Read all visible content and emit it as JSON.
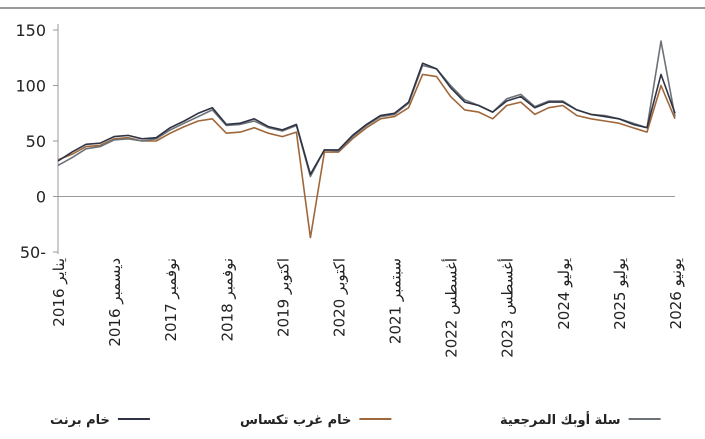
{
  "chart_data": {
    "type": "line",
    "categories": [
      "يناير 2016",
      null,
      null,
      null,
      "ديسمبر 2016",
      null,
      null,
      null,
      "نوفمبر 2017",
      null,
      null,
      null,
      "نوفمبر 2018",
      null,
      null,
      null,
      "اكتوبر 2019",
      null,
      null,
      null,
      "اكتوبر 2020",
      null,
      null,
      null,
      "سبتمبر 2021",
      null,
      null,
      null,
      "أغسطس 2022",
      null,
      null,
      null,
      "أغسطس 2023",
      null,
      null,
      null,
      "يوليو 2024",
      null,
      null,
      null,
      "يوليو 2025",
      null,
      null,
      null,
      "يونيو 2026"
    ],
    "series": [
      {
        "name": "خام برنت",
        "color": "#2e3444",
        "values": [
          32,
          40,
          47,
          48,
          54,
          55,
          52,
          53,
          62,
          68,
          75,
          80,
          65,
          66,
          70,
          63,
          60,
          65,
          20,
          42,
          42,
          55,
          65,
          73,
          75,
          85,
          120,
          115,
          98,
          85,
          82,
          76,
          86,
          90,
          80,
          85,
          85,
          78,
          74,
          72,
          70,
          65,
          62,
          110,
          75
        ]
      },
      {
        "name": "خام غرب تكساس",
        "color": "#a0673a",
        "values": [
          33,
          38,
          45,
          46,
          52,
          53,
          50,
          50,
          57,
          63,
          68,
          70,
          57,
          58,
          62,
          57,
          54,
          58,
          -37,
          40,
          40,
          52,
          62,
          70,
          72,
          80,
          110,
          108,
          90,
          78,
          76,
          70,
          82,
          85,
          74,
          80,
          82,
          73,
          70,
          68,
          66,
          62,
          58,
          100,
          70
        ]
      },
      {
        "name": "سلة أوبك المرجعية",
        "color": "#6d7278",
        "values": [
          28,
          35,
          43,
          45,
          51,
          52,
          50,
          52,
          60,
          66,
          72,
          78,
          64,
          65,
          68,
          62,
          59,
          64,
          18,
          42,
          41,
          54,
          64,
          72,
          74,
          84,
          118,
          115,
          100,
          87,
          82,
          76,
          88,
          92,
          81,
          86,
          86,
          78,
          74,
          73,
          70,
          66,
          62,
          140,
          72
        ]
      }
    ],
    "ylim": [
      -50,
      150
    ],
    "yticks": [
      {
        "value": -50,
        "label": "50-"
      },
      0,
      50,
      100,
      150
    ]
  }
}
